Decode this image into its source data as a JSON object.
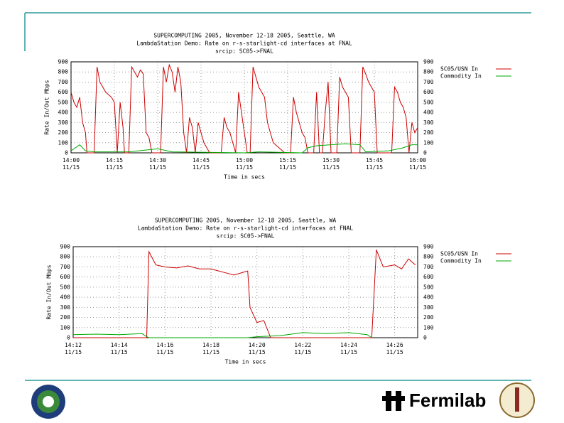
{
  "chart_data": [
    {
      "type": "line",
      "title": "SUPERCOMPUTING 2005, November 12-18 2005, Seattle, WA",
      "subtitle": "LambdaStation Demo: Rate on r-s-starlight-cd interfaces at FNAL",
      "caption": "srcip: SC05->FNAL",
      "ylabel": "Rate In/Out Mbps",
      "xlabel": "Time in secs",
      "legend": "right",
      "grid": true,
      "xlim": [
        0,
        120
      ],
      "xticks": [
        {
          "value": 0,
          "label": "14:00 11/15"
        },
        {
          "value": 15,
          "label": "14:15 11/15"
        },
        {
          "value": 30,
          "label": "14:30 11/15"
        },
        {
          "value": 45,
          "label": "14:45 11/15"
        },
        {
          "value": 60,
          "label": "15:00 11/15"
        },
        {
          "value": 75,
          "label": "15:15 11/15"
        },
        {
          "value": 90,
          "label": "15:30 11/15"
        },
        {
          "value": 105,
          "label": "15:45 11/15"
        },
        {
          "value": 120,
          "label": "16:00 11/15"
        }
      ],
      "ylim": [
        0,
        900
      ],
      "yticks": [
        0,
        100,
        200,
        300,
        400,
        500,
        600,
        700,
        800,
        900
      ],
      "series": [
        {
          "name": "SC05/USN In",
          "color": "#cc0000",
          "x": [
            0,
            1,
            2,
            3,
            4,
            5,
            5.5,
            8,
            9,
            10,
            11,
            12,
            14,
            15,
            16,
            17,
            18,
            18.5,
            20,
            21,
            22,
            23,
            24,
            25,
            26,
            27,
            28,
            31,
            32,
            33,
            34,
            35,
            36,
            37,
            38,
            39,
            40,
            41,
            42,
            43,
            44,
            45,
            46,
            47,
            48,
            52,
            53,
            54,
            55,
            56,
            57,
            58,
            59,
            60,
            61,
            62,
            63,
            64,
            65,
            66,
            67,
            68,
            69,
            70,
            72,
            74,
            76,
            77,
            78,
            79,
            80,
            81,
            82,
            84,
            85,
            86,
            87,
            88,
            89,
            90,
            92,
            93,
            94,
            95,
            96,
            97,
            100,
            101,
            102,
            103,
            104,
            105,
            106,
            111,
            112,
            113,
            114,
            115,
            116,
            117,
            118,
            119,
            120
          ],
          "values": [
            600,
            500,
            450,
            550,
            300,
            200,
            0,
            0,
            850,
            700,
            650,
            600,
            550,
            500,
            0,
            500,
            250,
            0,
            0,
            850,
            800,
            750,
            820,
            780,
            200,
            150,
            0,
            0,
            850,
            700,
            870,
            800,
            600,
            850,
            700,
            200,
            0,
            350,
            250,
            0,
            300,
            200,
            100,
            50,
            0,
            0,
            350,
            250,
            200,
            100,
            0,
            600,
            400,
            200,
            0,
            0,
            850,
            750,
            650,
            600,
            550,
            300,
            200,
            100,
            50,
            0,
            0,
            550,
            400,
            300,
            200,
            150,
            0,
            0,
            600,
            0,
            0,
            400,
            700,
            0,
            0,
            750,
            650,
            600,
            550,
            0,
            0,
            850,
            780,
            700,
            650,
            600,
            0,
            0,
            650,
            600,
            500,
            450,
            350,
            0,
            300,
            200,
            250
          ]
        },
        {
          "name": "Commodity In",
          "color": "#00aa00",
          "x": [
            0,
            3,
            5,
            8,
            20,
            30,
            35,
            60,
            65,
            80,
            82,
            85,
            90,
            95,
            100,
            102,
            110,
            115,
            118,
            120
          ],
          "values": [
            20,
            80,
            20,
            10,
            10,
            40,
            10,
            0,
            10,
            0,
            50,
            70,
            80,
            90,
            80,
            10,
            20,
            50,
            80,
            80
          ]
        }
      ]
    },
    {
      "type": "line",
      "title": "SUPERCOMPUTING 2005, November 12-18 2005, Seattle, WA",
      "subtitle": "LambdaStation Demo: Rate on r-s-starlight-cd interfaces at FNAL",
      "caption": "srcip: SC05->FNAL",
      "ylabel": "Rate In/Out Mbps",
      "xlabel": "Time in secs",
      "legend": "right",
      "grid": true,
      "xlim": [
        0,
        15
      ],
      "xticks": [
        {
          "value": 0,
          "label": "14:12 11/15"
        },
        {
          "value": 2,
          "label": "14:14 11/15"
        },
        {
          "value": 4,
          "label": "14:16 11/15"
        },
        {
          "value": 6,
          "label": "14:18 11/15"
        },
        {
          "value": 8,
          "label": "14:20 11/15"
        },
        {
          "value": 10,
          "label": "14:22 11/15"
        },
        {
          "value": 12,
          "label": "14:24 11/15"
        },
        {
          "value": 14,
          "label": "14:26 11/15"
        }
      ],
      "ylim": [
        0,
        900
      ],
      "yticks": [
        0,
        100,
        200,
        300,
        400,
        500,
        600,
        700,
        800,
        900
      ],
      "series": [
        {
          "name": "SC05/USN In",
          "color": "#cc0000",
          "x": [
            0,
            3.2,
            3.3,
            3.6,
            4,
            4.5,
            5,
            5.5,
            6,
            6.5,
            7,
            7.6,
            7.7,
            8,
            8.3,
            8.6,
            13,
            13.2,
            13.5,
            14,
            14.3,
            14.6,
            14.9
          ],
          "values": [
            0,
            0,
            850,
            720,
            700,
            690,
            710,
            680,
            680,
            650,
            620,
            660,
            300,
            150,
            170,
            0,
            0,
            870,
            700,
            720,
            680,
            780,
            720
          ]
        },
        {
          "name": "Commodity In",
          "color": "#00aa00",
          "x": [
            0,
            1,
            2,
            3,
            3.2,
            3.3,
            7.6,
            8,
            9,
            10,
            11,
            12,
            12.8,
            13
          ],
          "values": [
            30,
            35,
            30,
            40,
            10,
            0,
            0,
            10,
            20,
            50,
            40,
            50,
            30,
            0
          ]
        }
      ]
    }
  ],
  "footer": {
    "logo_text": "Fermilab"
  }
}
